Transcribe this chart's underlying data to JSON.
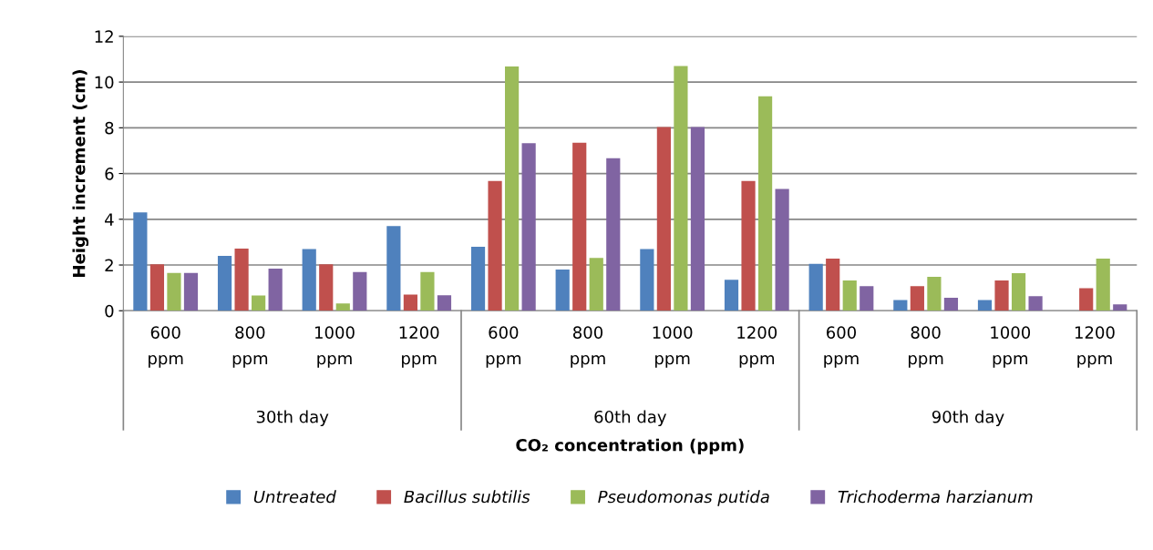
{
  "chart_data": {
    "type": "bar",
    "xlabel": "CO₂ concentration (ppm)",
    "ylabel": "Height increment (cm)",
    "categories": [
      "600 ppm",
      "800 ppm",
      "1000 ppm",
      "1200 ppm",
      "600 ppm",
      "800 ppm",
      "1000 ppm",
      "1200 ppm",
      "600 ppm",
      "800 ppm",
      "1000 ppm",
      "1200 ppm"
    ],
    "annotations": [
      "30th day",
      "60th day",
      "90th day"
    ],
    "series": [
      {
        "name": "Untreated",
        "color": "#4f81bd",
        "values": [
          4.3,
          2.4,
          2.7,
          3.7,
          2.8,
          1.8,
          2.7,
          1.35,
          2.05,
          0.47,
          0.47,
          0
        ]
      },
      {
        "name": "Bacillus subtilis",
        "color": "#c0504d",
        "values": [
          2.03,
          2.72,
          2.03,
          0.71,
          5.67,
          7.35,
          8.03,
          5.67,
          2.28,
          1.08,
          1.32,
          0.99
        ]
      },
      {
        "name": "Pseudomonas putida",
        "color": "#9bbb59",
        "values": [
          1.65,
          0.67,
          0.32,
          1.69,
          10.68,
          2.31,
          10.7,
          9.38,
          1.32,
          1.48,
          1.64,
          2.28
        ]
      },
      {
        "name": "Trichoderma harzianum",
        "color": "#8064a2",
        "values": [
          1.65,
          1.84,
          1.69,
          0.68,
          7.33,
          6.67,
          8.03,
          5.33,
          1.08,
          0.57,
          0.64,
          0.28
        ]
      }
    ],
    "ylim": [
      0,
      12
    ],
    "yticks": [
      0,
      2,
      4,
      6,
      8,
      10,
      12
    ],
    "grid": "y",
    "legend": "bottom"
  }
}
